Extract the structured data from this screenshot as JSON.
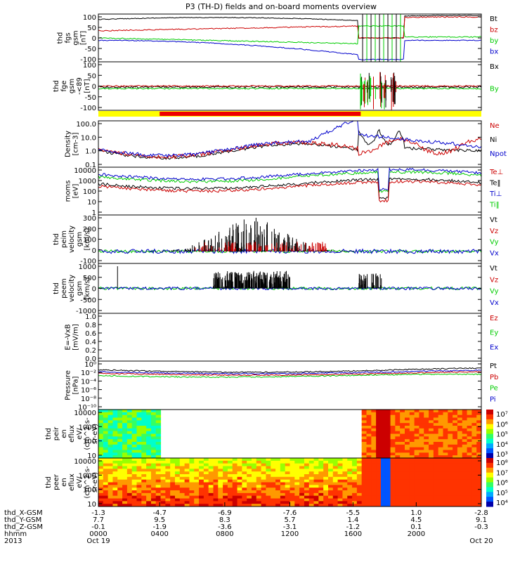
{
  "title": "P3 (TH-D) fields and on-board moments overview",
  "colors": {
    "black": "#000000",
    "red": "#cc0000",
    "green": "#00cc00",
    "blue": "#0000cc",
    "yellow": "#ffff00",
    "orange": "#ff9900"
  },
  "chart_data": [
    {
      "type": "line",
      "ylabel": [
        "thd",
        "fgs",
        "gsm",
        "[nT]"
      ],
      "ylim": [
        -100,
        100
      ],
      "yticks": [
        "100",
        "50",
        "0",
        "-50",
        "-100"
      ],
      "series": [
        {
          "name": "Bt",
          "color": "#000000"
        },
        {
          "name": "bz",
          "color": "#cc0000"
        },
        {
          "name": "by",
          "color": "#00cc00"
        },
        {
          "name": "bx",
          "color": "#0000cc"
        }
      ]
    },
    {
      "type": "line",
      "ylabel": [
        "thd",
        "fge",
        "gsm",
        "-<89",
        "[nT]"
      ],
      "ylim": [
        -120,
        120
      ],
      "yticks": [
        "100",
        "50",
        "0",
        "-50",
        "-100"
      ],
      "series": [
        {
          "name": "Bx",
          "color": "#000000"
        },
        {
          "name": "By",
          "color": "#00cc00"
        }
      ]
    },
    {
      "type": "bar",
      "label": "mode bar"
    },
    {
      "type": "line",
      "ylabel": [
        "Density",
        "[cm-3]"
      ],
      "scale": "log",
      "yticks": [
        "100.0",
        "10.0",
        "1.0",
        "0.1"
      ],
      "series": [
        {
          "name": "Ne",
          "color": "#cc0000"
        },
        {
          "name": "Ni",
          "color": "#000000"
        },
        {
          "name": "Npot",
          "color": "#0000cc"
        }
      ]
    },
    {
      "type": "line",
      "ylabel": [
        "moms",
        "[eV]"
      ],
      "scale": "log",
      "yticks": [
        "10000",
        "1000",
        "100",
        "10",
        "1"
      ],
      "series": [
        {
          "name": "Te⊥",
          "color": "#cc0000"
        },
        {
          "name": "Te‖",
          "color": "#000000"
        },
        {
          "name": "Ti⊥",
          "color": "#0000cc"
        },
        {
          "name": "Ti‖",
          "color": "#00cc00"
        }
      ]
    },
    {
      "type": "line",
      "ylabel": [
        "thd",
        "peim",
        "velocity",
        "gsm",
        "[km/s]"
      ],
      "ylim": [
        -100,
        300
      ],
      "yticks": [
        "300",
        "200",
        "100",
        "0",
        "-100"
      ],
      "series": [
        {
          "name": "Vt",
          "color": "#000000"
        },
        {
          "name": "Vz",
          "color": "#cc0000"
        },
        {
          "name": "Vy",
          "color": "#00cc00"
        },
        {
          "name": "Vx",
          "color": "#0000cc"
        }
      ]
    },
    {
      "type": "line",
      "ylabel": [
        "thd",
        "peem",
        "velocity",
        "gsm",
        "[km/s]"
      ],
      "ylim": [
        -1000,
        1000
      ],
      "yticks": [
        "1000",
        "500",
        "0",
        "-500",
        "-1000"
      ],
      "series": [
        {
          "name": "Vt",
          "color": "#000000"
        },
        {
          "name": "Vz",
          "color": "#cc0000"
        },
        {
          "name": "Vy",
          "color": "#00cc00"
        },
        {
          "name": "Vx",
          "color": "#0000cc"
        }
      ]
    },
    {
      "type": "line",
      "ylabel": [
        "E=-VxB",
        "[mV/m]"
      ],
      "ylim": [
        0,
        1
      ],
      "yticks": [
        "1.0",
        "0.8",
        "0.6",
        "0.4",
        "0.2",
        "0.0"
      ],
      "series": [
        {
          "name": "Ez",
          "color": "#cc0000"
        },
        {
          "name": "Ey",
          "color": "#00cc00"
        },
        {
          "name": "Ex",
          "color": "#0000cc"
        }
      ]
    },
    {
      "type": "line",
      "ylabel": [
        "Pressure",
        "[nPa]"
      ],
      "scale": "log",
      "yticks": [
        "10⁰",
        "10⁻²",
        "10⁻⁴",
        "10⁻⁶",
        "10⁻⁸",
        "10⁻¹⁰"
      ],
      "series": [
        {
          "name": "Pt",
          "color": "#000000"
        },
        {
          "name": "Pb",
          "color": "#cc0000"
        },
        {
          "name": "Pe",
          "color": "#00cc00"
        },
        {
          "name": "Pi",
          "color": "#0000cc"
        }
      ]
    },
    {
      "type": "heatmap",
      "ylabel": [
        "thd",
        "peir",
        "en",
        "eflux",
        "eV/",
        "(cm^2-s-",
        "sr-eV)"
      ],
      "yticks": [
        "10000",
        "1000",
        "100",
        "10"
      ],
      "colorbar": [
        "10⁷",
        "10⁶",
        "10⁵",
        "10⁴",
        "10³"
      ]
    },
    {
      "type": "heatmap",
      "ylabel": [
        "thd",
        "peer",
        "en",
        "eflux",
        "eV/",
        "(cm^2-s-",
        "sr-eV)"
      ],
      "yticks": [
        "10000",
        "1000",
        "100",
        "10"
      ],
      "colorbar": [
        "10⁸",
        "10⁷",
        "10⁶",
        "10⁵",
        "10⁴"
      ]
    }
  ],
  "xaxis": {
    "rows": [
      {
        "label": "thd_X-GSM",
        "values": [
          "-1.3",
          "-4.7",
          "-6.9",
          "-7.6",
          "-5.5",
          "1.0",
          "-2.8"
        ]
      },
      {
        "label": "thd_Y-GSM",
        "values": [
          "7.7",
          "9.5",
          "8.3",
          "5.7",
          "1.4",
          "4.5",
          "9.1"
        ]
      },
      {
        "label": "thd_Z-GSM",
        "values": [
          "-0.1",
          "-1.9",
          "-3.6",
          "-3.1",
          "-1.2",
          "0.1",
          "-0.3"
        ]
      },
      {
        "label": "hhmm",
        "values": [
          "0000",
          "0400",
          "0800",
          "1200",
          "1600",
          "2000",
          ""
        ]
      },
      {
        "label": "2013",
        "values": [
          "Oct 19",
          "",
          "",
          "",
          "",
          "",
          "Oct 20"
        ]
      }
    ]
  }
}
